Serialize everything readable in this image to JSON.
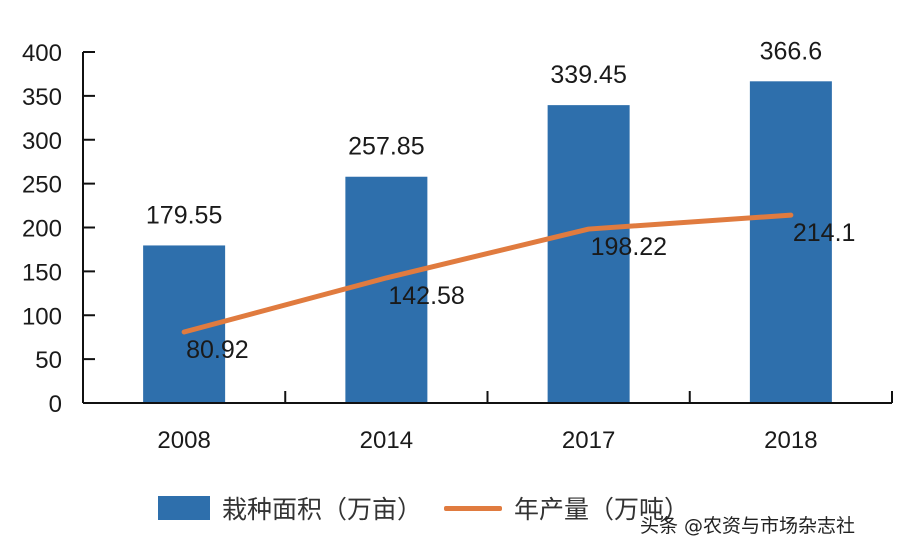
{
  "chart_data": {
    "type": "bar",
    "title": "",
    "xlabel": "",
    "ylabel": "",
    "ylim": [
      0,
      400
    ],
    "yticks": [
      0,
      50,
      100,
      150,
      200,
      250,
      300,
      350,
      400
    ],
    "grid": false,
    "legend_position": "bottom",
    "categories": [
      "2008",
      "2014",
      "2017",
      "2018"
    ],
    "series": [
      {
        "name": "栽种面积（万亩）",
        "type": "bar",
        "color": "#2e6fac",
        "values": [
          179.55,
          257.85,
          339.45,
          366.6
        ],
        "labels": [
          "179.55",
          "257.85",
          "339.45",
          "366.6"
        ]
      },
      {
        "name": "年产量（万吨）",
        "type": "line",
        "color": "#e07b3f",
        "values": [
          80.92,
          142.58,
          198.22,
          214.1
        ],
        "labels": [
          "80.92",
          "142.58",
          "198.22",
          "214.1"
        ]
      }
    ]
  },
  "legend": {
    "bar_label": "栽种面积（万亩）",
    "line_label": "年产量（万吨）"
  },
  "watermark": "头条 @农资与市场杂志社"
}
